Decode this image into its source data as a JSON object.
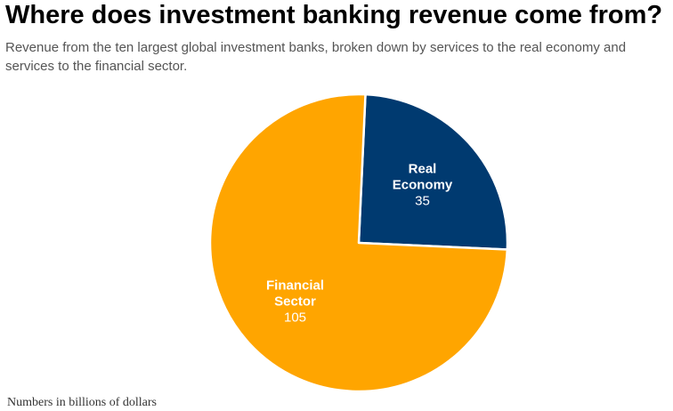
{
  "chart_data": {
    "type": "pie",
    "title": "Where does investment banking revenue come from?",
    "subtitle": "Revenue from the ten largest global investment banks, broken down by services to the real economy and services to the financial sector.",
    "note": "Numbers in billions of dollars",
    "slices": [
      {
        "label": [
          "Real",
          "Economy"
        ],
        "value": 35,
        "color": "#003A70"
      },
      {
        "label": [
          "Financial",
          "Sector"
        ],
        "value": 105,
        "color": "#FFA500"
      }
    ]
  }
}
